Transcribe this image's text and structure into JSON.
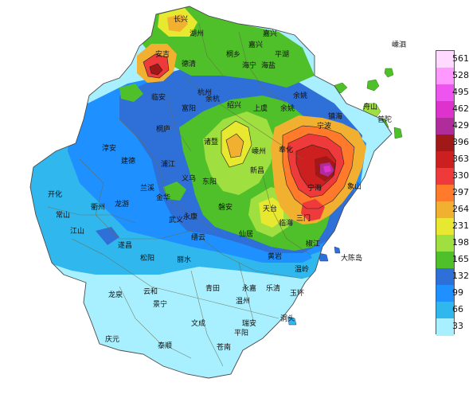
{
  "legend": {
    "values": [
      "561",
      "528",
      "495",
      "462",
      "429",
      "396",
      "363",
      "330",
      "297",
      "264",
      "231",
      "198",
      "165",
      "132",
      "99",
      "66",
      "33"
    ],
    "colors": [
      "#ffd9ff",
      "#ff99ff",
      "#ee55ee",
      "#dd33cc",
      "#b02c9a",
      "#a01818",
      "#cc2020",
      "#ee3a3a",
      "#ff7a2a",
      "#f2b030",
      "#e8e830",
      "#9fe040",
      "#4fbf2a",
      "#2f6fd8",
      "#1e90ff",
      "#30b8ee",
      "#a8f0ff"
    ]
  },
  "places": {
    "changxing": "长兴",
    "huzhou": "湖州",
    "jiashan": "嘉兴",
    "pinghu": "平湖",
    "tongxiang": "桐乡",
    "haining": "海宁",
    "haiyan": "海盐",
    "deqing": "德清",
    "anji": "安吉",
    "shengsi": "嵊泗",
    "linan": "临安",
    "hangzhou": "杭州",
    "xiaoshan": "萧山",
    "fuyang": "富阳",
    "shaoxing": "绍兴",
    "cixi": "余姚",
    "zhenhai": "镇海",
    "zhoushan": "舟山",
    "putuo": "普陀",
    "daishan": "岱山",
    "tonglu": "桐庐",
    "zhuji": "诸暨",
    "shangyu": "上虞",
    "yuyao": "余姚",
    "ningbo": "宁波",
    "chunan": "淳安",
    "jiande": "建德",
    "pujiang": "浦江",
    "shengzhou": "嵊州",
    "fenghua": "奉化",
    "xiangshan": "象山",
    "kaihua": "开化",
    "lanxi": "兰溪",
    "yiwu": "义乌",
    "dongyang": "东阳",
    "xinchang": "新昌",
    "ninghai": "宁海",
    "shipu": "石浦",
    "quzhou": "衢州",
    "longyou": "龙游",
    "jinhua": "金华",
    "changshan": "常山",
    "wuyi": "武义",
    "yongkang": "永康",
    "pan'an": "磐安",
    "tiantai": "天台",
    "sanmen": "三门",
    "jiangshan": "江山",
    "suichang": "遂昌",
    "jinyun": "缙云",
    "xianju": "仙居",
    "linhai": "临海",
    "songyang": "松阳",
    "lishui": "丽水",
    "huangyan": "黄岩",
    "jiaojiang": "椒江",
    "dachendao": "大陈岛",
    "longquan": "龙泉",
    "yunhe": "云和",
    "qingtian": "青田",
    "yongjia": "永嘉",
    "yueqing": "乐清",
    "wenling": "温岭",
    "yuhuan": "玉环",
    "jingning": "景宁",
    "wenzhou": "温州",
    "dongtou": "洞头",
    "qingyuan": "庆元",
    "wencheng": "文成",
    "ruian": "瑞安",
    "pingyang": "平阳",
    "taishun": "泰顺",
    "cangnan": "苍南",
    "shengsi2": "嵊泗",
    "wuyi2": "武义",
    "yuhang": "余杭"
  }
}
